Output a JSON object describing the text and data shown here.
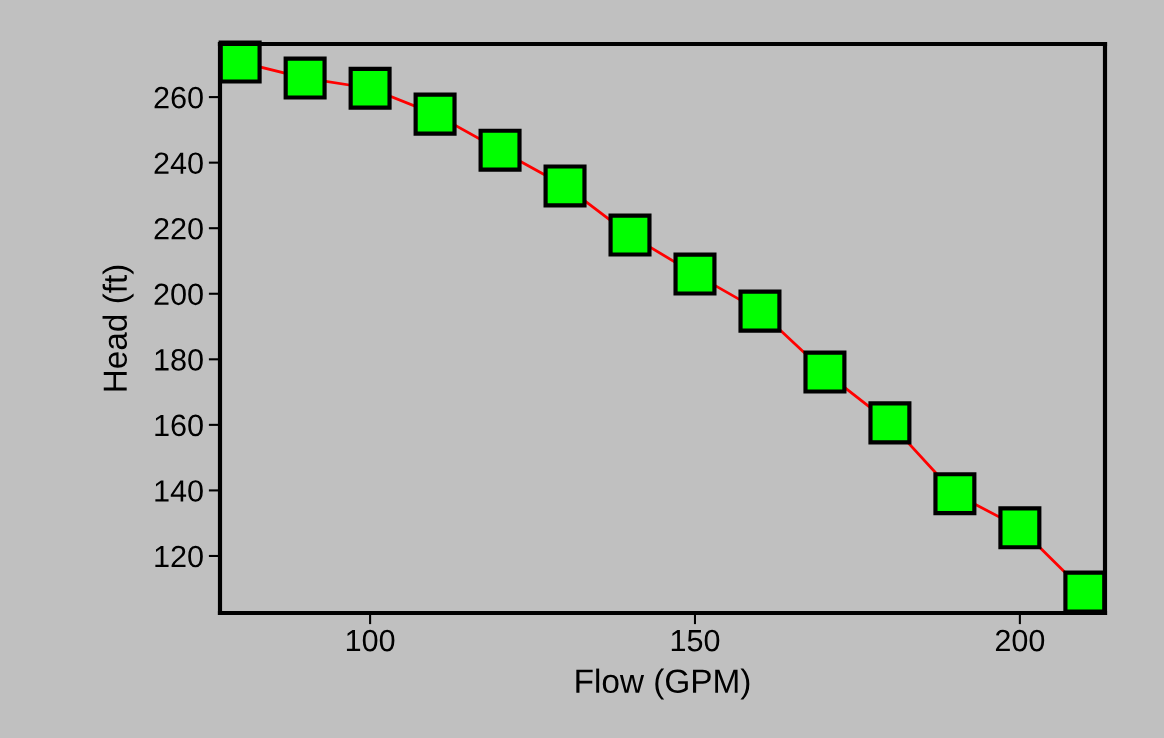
{
  "chart_data": {
    "type": "line",
    "xlabel": "Flow (GPM)",
    "ylabel": "Head (ft)",
    "x": [
      80,
      90,
      100,
      110,
      120,
      130,
      140,
      150,
      160,
      170,
      180,
      190,
      200,
      210
    ],
    "series": [
      {
        "color": "#ff0000",
        "colors": [
          "#00ff00",
          "#00ff00",
          "#00ff00",
          "#00ff00",
          "#00ff00",
          "#00ff00",
          "#00ff00",
          "#00ff00",
          "#00ff00",
          "#00ff00",
          "#00ff00",
          "#00ff00",
          "#00ff00",
          "#00ff00"
        ],
        "values": [
          270.7,
          265.8,
          262.7,
          254.8,
          243.8,
          232.9,
          217.9,
          206.0,
          194.7,
          176.1,
          160.6,
          139.0,
          128.6,
          109.0
        ]
      }
    ],
    "marker": "square",
    "line_style": "solid",
    "grid": false,
    "legend": false,
    "xlim": [
      76.9,
      213.1
    ],
    "xticks": [
      100,
      150,
      200
    ],
    "ylim": [
      102.6,
      276.2
    ],
    "yticks": [
      120,
      140,
      160,
      180,
      200,
      220,
      240,
      260
    ]
  }
}
